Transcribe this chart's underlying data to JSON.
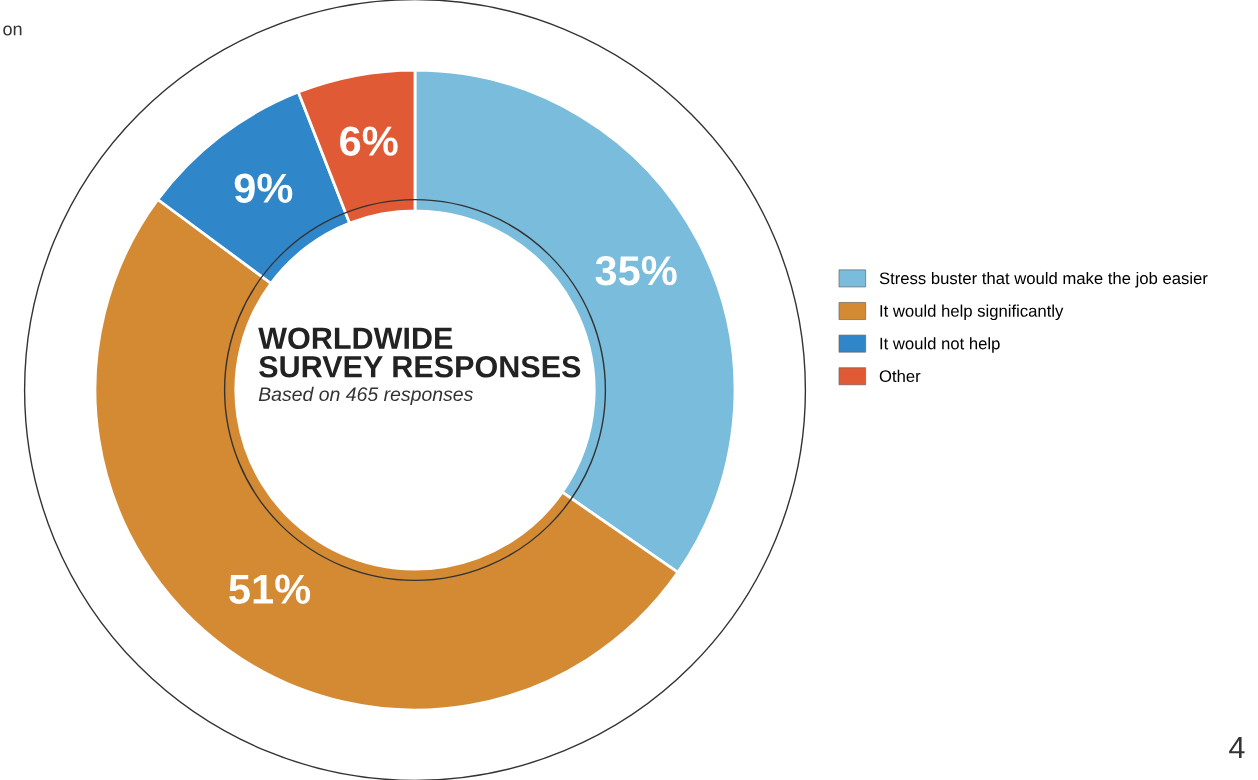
{
  "chart_data": {
    "type": "donut",
    "title": "WORLDWIDE\nSURVEY RESPONSES",
    "subtitle": "Based on 465 responses",
    "categories": [
      "Stress buster that would make the job easier",
      "It would help significantly",
      "It would not help",
      "Other"
    ],
    "values": [
      35,
      51,
      9,
      6
    ],
    "colors": [
      "#79bcdc",
      "#d48a33",
      "#2f86c8",
      "#e05a35"
    ],
    "value_labels": [
      "35%",
      "51%",
      "9%",
      "6%"
    ],
    "legend": "right",
    "annotations": [
      "on",
      "4"
    ]
  }
}
